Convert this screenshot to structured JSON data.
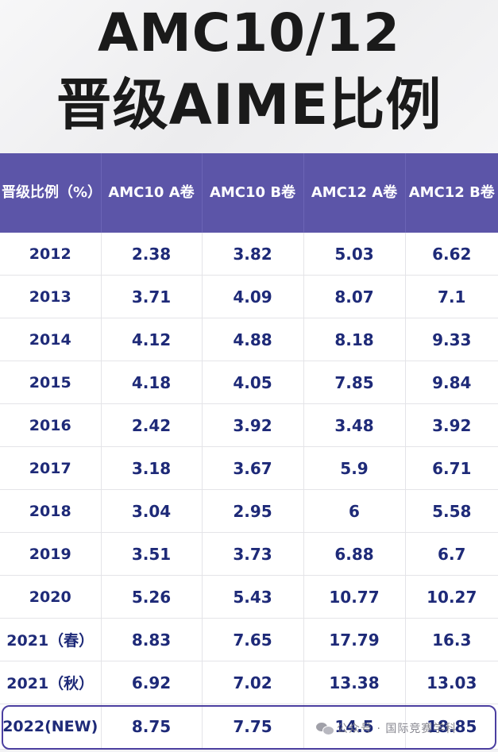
{
  "title": {
    "line1": "AMC10/12",
    "line2": "晋级AIME比例"
  },
  "table": {
    "headers": [
      "晋级比例（%）",
      "AMC10 A卷",
      "AMC10 B卷",
      "AMC12 A卷",
      "AMC12 B卷"
    ],
    "rows": [
      [
        "2012",
        "2.38",
        "3.82",
        "5.03",
        "6.62"
      ],
      [
        "2013",
        "3.71",
        "4.09",
        "8.07",
        "7.1"
      ],
      [
        "2014",
        "4.12",
        "4.88",
        "8.18",
        "9.33"
      ],
      [
        "2015",
        "4.18",
        "4.05",
        "7.85",
        "9.84"
      ],
      [
        "2016",
        "2.42",
        "3.92",
        "3.48",
        "3.92"
      ],
      [
        "2017",
        "3.18",
        "3.67",
        "5.9",
        "6.71"
      ],
      [
        "2018",
        "3.04",
        "2.95",
        "6",
        "5.58"
      ],
      [
        "2019",
        "3.51",
        "3.73",
        "6.88",
        "6.7"
      ],
      [
        "2020",
        "5.26",
        "5.43",
        "10.77",
        "10.27"
      ],
      [
        "2021（春）",
        "8.83",
        "7.65",
        "17.79",
        "16.3"
      ],
      [
        "2021（秋）",
        "6.92",
        "7.02",
        "13.38",
        "13.03"
      ],
      [
        "2022(NEW)",
        "8.75",
        "7.75",
        "14.5",
        "18.85"
      ]
    ]
  },
  "watermark": {
    "icon": "wechat-icon",
    "text": "公众号 · 国际竞赛学科"
  },
  "colors": {
    "header_bg": "#5c55a8",
    "cell_text": "#1e2a78",
    "highlight_border": "#4b3fa0"
  }
}
